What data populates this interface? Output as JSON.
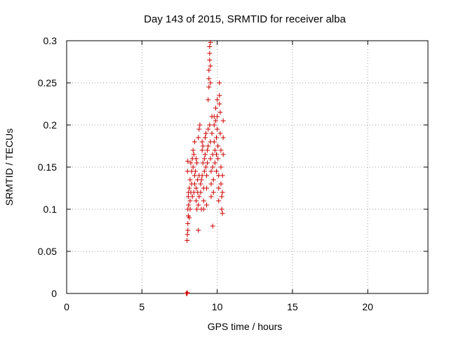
{
  "chart_data": {
    "type": "scatter",
    "title": "Day 143 of 2015, SRMTID for receiver alba",
    "xlabel": "GPS time / hours",
    "ylabel": "SRMTID / TECUs",
    "xlim": [
      0,
      24
    ],
    "ylim": [
      0,
      0.3
    ],
    "x_ticks": [
      0,
      5,
      10,
      15,
      20
    ],
    "x_tick_labels": [
      "0",
      "5",
      "10",
      "15",
      "20"
    ],
    "y_ticks": [
      0,
      0.05,
      0.1,
      0.15,
      0.2,
      0.25,
      0.3
    ],
    "y_tick_labels": [
      "0",
      "0.05",
      "0.1",
      "0.15",
      "0.2",
      "0.25",
      "0.3"
    ],
    "grid": true,
    "marker": "plus",
    "marker_color": "#cc0000",
    "series": [
      {
        "points": [
          [
            7.95,
            0.0
          ],
          [
            8.0,
            0.0
          ],
          [
            8.02,
            0.001
          ],
          [
            8.0,
            0.063
          ],
          [
            8.02,
            0.07
          ],
          [
            8.05,
            0.075
          ],
          [
            8.05,
            0.083
          ],
          [
            8.08,
            0.092
          ],
          [
            8.05,
            0.1
          ],
          [
            8.1,
            0.105
          ],
          [
            8.08,
            0.115
          ],
          [
            8.1,
            0.12
          ],
          [
            8.03,
            0.145
          ],
          [
            8.05,
            0.157
          ],
          [
            8.15,
            0.09
          ],
          [
            8.2,
            0.1
          ],
          [
            8.2,
            0.11
          ],
          [
            8.15,
            0.125
          ],
          [
            8.25,
            0.12
          ],
          [
            8.3,
            0.13
          ],
          [
            8.2,
            0.135
          ],
          [
            8.35,
            0.115
          ],
          [
            8.3,
            0.145
          ],
          [
            8.25,
            0.155
          ],
          [
            8.4,
            0.15
          ],
          [
            8.35,
            0.16
          ],
          [
            8.4,
            0.17
          ],
          [
            8.45,
            0.12
          ],
          [
            8.5,
            0.13
          ],
          [
            8.5,
            0.14
          ],
          [
            8.45,
            0.165
          ],
          [
            8.5,
            0.18
          ],
          [
            8.55,
            0.145
          ],
          [
            8.6,
            0.125
          ],
          [
            8.6,
            0.11
          ],
          [
            8.65,
            0.1
          ],
          [
            8.6,
            0.16
          ],
          [
            8.65,
            0.155
          ],
          [
            8.7,
            0.135
          ],
          [
            8.7,
            0.12
          ],
          [
            8.75,
            0.075
          ],
          [
            8.75,
            0.105
          ],
          [
            8.8,
            0.115
          ],
          [
            8.8,
            0.14
          ],
          [
            8.75,
            0.185
          ],
          [
            8.8,
            0.195
          ],
          [
            8.85,
            0.2
          ],
          [
            8.9,
            0.13
          ],
          [
            8.9,
            0.12
          ],
          [
            8.95,
            0.1
          ],
          [
            8.95,
            0.135
          ],
          [
            9.0,
            0.14
          ],
          [
            9.0,
            0.17
          ],
          [
            9.0,
            0.18
          ],
          [
            9.05,
            0.175
          ],
          [
            9.05,
            0.155
          ],
          [
            9.1,
            0.125
          ],
          [
            9.1,
            0.11
          ],
          [
            9.1,
            0.1
          ],
          [
            9.15,
            0.145
          ],
          [
            9.15,
            0.16
          ],
          [
            9.2,
            0.165
          ],
          [
            9.2,
            0.185
          ],
          [
            9.25,
            0.19
          ],
          [
            9.25,
            0.15
          ],
          [
            9.3,
            0.14
          ],
          [
            9.3,
            0.125
          ],
          [
            9.3,
            0.105
          ],
          [
            9.35,
            0.155
          ],
          [
            9.35,
            0.17
          ],
          [
            9.4,
            0.175
          ],
          [
            9.4,
            0.195
          ],
          [
            9.4,
            0.23
          ],
          [
            9.45,
            0.245
          ],
          [
            9.45,
            0.255
          ],
          [
            9.45,
            0.265
          ],
          [
            9.5,
            0.277
          ],
          [
            9.5,
            0.285
          ],
          [
            9.5,
            0.293
          ],
          [
            9.55,
            0.298
          ],
          [
            9.55,
            0.27
          ],
          [
            9.55,
            0.25
          ],
          [
            9.5,
            0.2
          ],
          [
            9.55,
            0.18
          ],
          [
            9.55,
            0.16
          ],
          [
            9.6,
            0.145
          ],
          [
            9.6,
            0.13
          ],
          [
            9.6,
            0.115
          ],
          [
            9.65,
            0.21
          ],
          [
            9.65,
            0.19
          ],
          [
            9.7,
            0.165
          ],
          [
            9.7,
            0.15
          ],
          [
            9.7,
            0.08
          ],
          [
            9.75,
            0.135
          ],
          [
            9.75,
            0.12
          ],
          [
            9.8,
            0.2
          ],
          [
            9.8,
            0.21
          ],
          [
            9.8,
            0.18
          ],
          [
            9.85,
            0.17
          ],
          [
            9.85,
            0.155
          ],
          [
            9.9,
            0.22
          ],
          [
            9.9,
            0.205
          ],
          [
            9.95,
            0.185
          ],
          [
            9.95,
            0.165
          ],
          [
            9.95,
            0.145
          ],
          [
            10.0,
            0.23
          ],
          [
            10.0,
            0.21
          ],
          [
            10.0,
            0.195
          ],
          [
            10.05,
            0.175
          ],
          [
            10.05,
            0.16
          ],
          [
            10.1,
            0.14
          ],
          [
            10.1,
            0.125
          ],
          [
            10.1,
            0.11
          ],
          [
            10.15,
            0.25
          ],
          [
            10.15,
            0.235
          ],
          [
            10.15,
            0.225
          ],
          [
            10.2,
            0.215
          ],
          [
            10.2,
            0.19
          ],
          [
            10.25,
            0.17
          ],
          [
            10.25,
            0.15
          ],
          [
            10.25,
            0.13
          ],
          [
            10.3,
            0.115
          ],
          [
            10.3,
            0.1
          ],
          [
            10.35,
            0.095
          ],
          [
            10.35,
            0.12
          ],
          [
            10.35,
            0.14
          ],
          [
            10.4,
            0.165
          ],
          [
            10.4,
            0.185
          ],
          [
            10.4,
            0.205
          ]
        ]
      }
    ]
  }
}
